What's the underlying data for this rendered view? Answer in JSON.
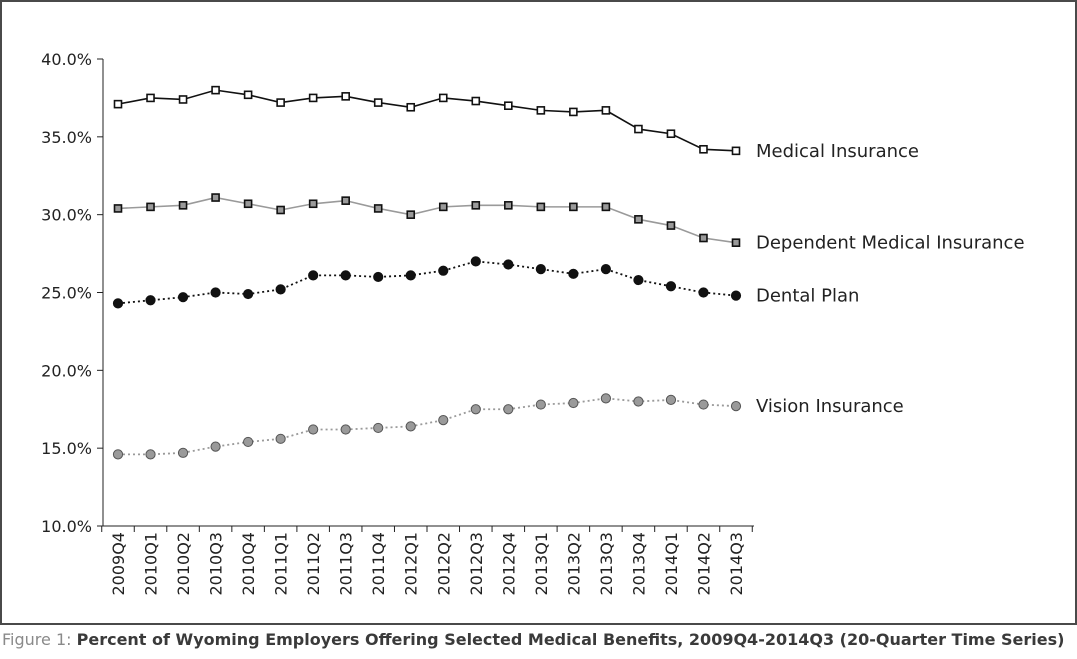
{
  "caption": {
    "prefix": "Figure 1:",
    "title": "Percent of Wyoming Employers Offering Selected Medical Benefits, 2009Q4-2014Q3 (20-Quarter Time Series)"
  },
  "chart_data": {
    "type": "line",
    "title": "",
    "xlabel": "",
    "ylabel": "",
    "ylim": [
      10,
      40
    ],
    "ytick_step": 5,
    "ytick_format": "percent_1dp",
    "grid": false,
    "legend": "inline-right",
    "categories": [
      "2009Q4",
      "2010Q1",
      "2010Q2",
      "2010Q3",
      "2010Q4",
      "2011Q1",
      "2011Q2",
      "2011Q3",
      "2011Q4",
      "2012Q1",
      "2012Q2",
      "2012Q3",
      "2012Q4",
      "2013Q1",
      "2013Q2",
      "2013Q3",
      "2013Q4",
      "2014Q1",
      "2014Q2",
      "2014Q3"
    ],
    "series": [
      {
        "name": "Medical Insurance",
        "line_color": "#111111",
        "dash": "solid",
        "marker": "square",
        "marker_fill": "#ffffff",
        "values": [
          37.1,
          37.5,
          37.4,
          38.0,
          37.7,
          37.2,
          37.5,
          37.6,
          37.2,
          36.9,
          37.5,
          37.3,
          37.0,
          36.7,
          36.6,
          36.7,
          35.5,
          35.2,
          34.2,
          34.1
        ]
      },
      {
        "name": "Dependent Medical Insurance",
        "line_color": "#9a9a9a",
        "dash": "solid",
        "marker": "square",
        "marker_fill": "#9a9a9a",
        "values": [
          30.4,
          30.5,
          30.6,
          31.1,
          30.7,
          30.3,
          30.7,
          30.9,
          30.4,
          30.0,
          30.5,
          30.6,
          30.6,
          30.5,
          30.5,
          30.5,
          29.7,
          29.3,
          28.5,
          28.2
        ]
      },
      {
        "name": "Dental Plan",
        "line_color": "#111111",
        "dash": "dotted",
        "marker": "circle",
        "marker_fill": "#111111",
        "values": [
          24.3,
          24.5,
          24.7,
          25.0,
          24.9,
          25.2,
          26.1,
          26.1,
          26.0,
          26.1,
          26.4,
          27.0,
          26.8,
          26.5,
          26.2,
          26.5,
          25.8,
          25.4,
          25.0,
          24.8
        ]
      },
      {
        "name": "Vision Insurance",
        "line_color": "#9a9a9a",
        "dash": "dotted",
        "marker": "circle",
        "marker_fill": "#9a9a9a",
        "values": [
          14.6,
          14.6,
          14.7,
          15.1,
          15.4,
          15.6,
          16.2,
          16.2,
          16.3,
          16.4,
          16.8,
          17.5,
          17.5,
          17.8,
          17.9,
          18.2,
          18.0,
          18.1,
          17.8,
          17.7
        ]
      }
    ]
  }
}
